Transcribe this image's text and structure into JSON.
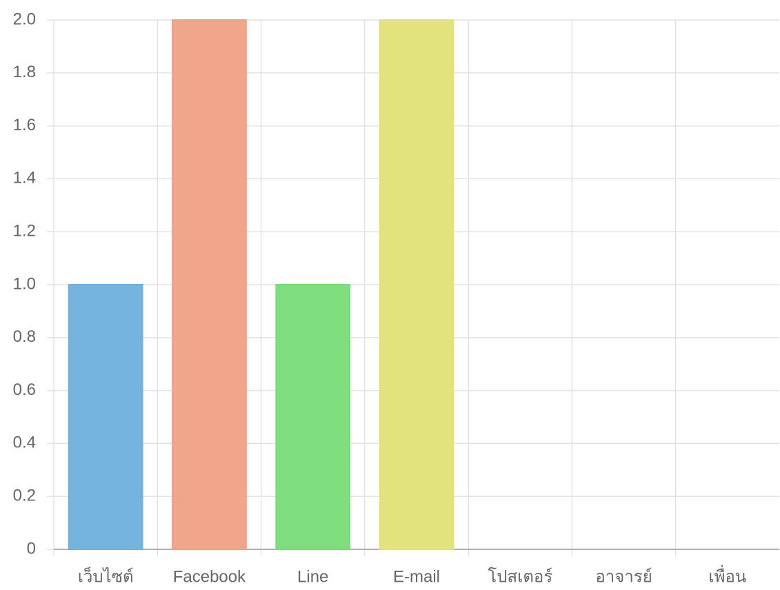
{
  "chart_data": {
    "type": "bar",
    "categories": [
      "เว็บไซต์",
      "Facebook",
      "Line",
      "E-mail",
      "โปสเตอร์",
      "อาจารย์",
      "เพื่อน"
    ],
    "values": [
      1,
      2,
      1,
      2,
      0,
      0,
      0
    ],
    "colors": [
      "#6eb0dd",
      "#f0a085",
      "#77dd77",
      "#e2e277",
      "#b07ccf",
      "#aaaaaa",
      "#dd8888"
    ],
    "ylim": [
      0,
      2
    ],
    "yticks": [
      0,
      0.2,
      0.4,
      0.6,
      0.8,
      {
        "value": 1,
        "label": "1.0"
      },
      1.2,
      1.4,
      1.6,
      1.8,
      {
        "value": 2,
        "label": "2.0"
      }
    ],
    "grid": true
  }
}
